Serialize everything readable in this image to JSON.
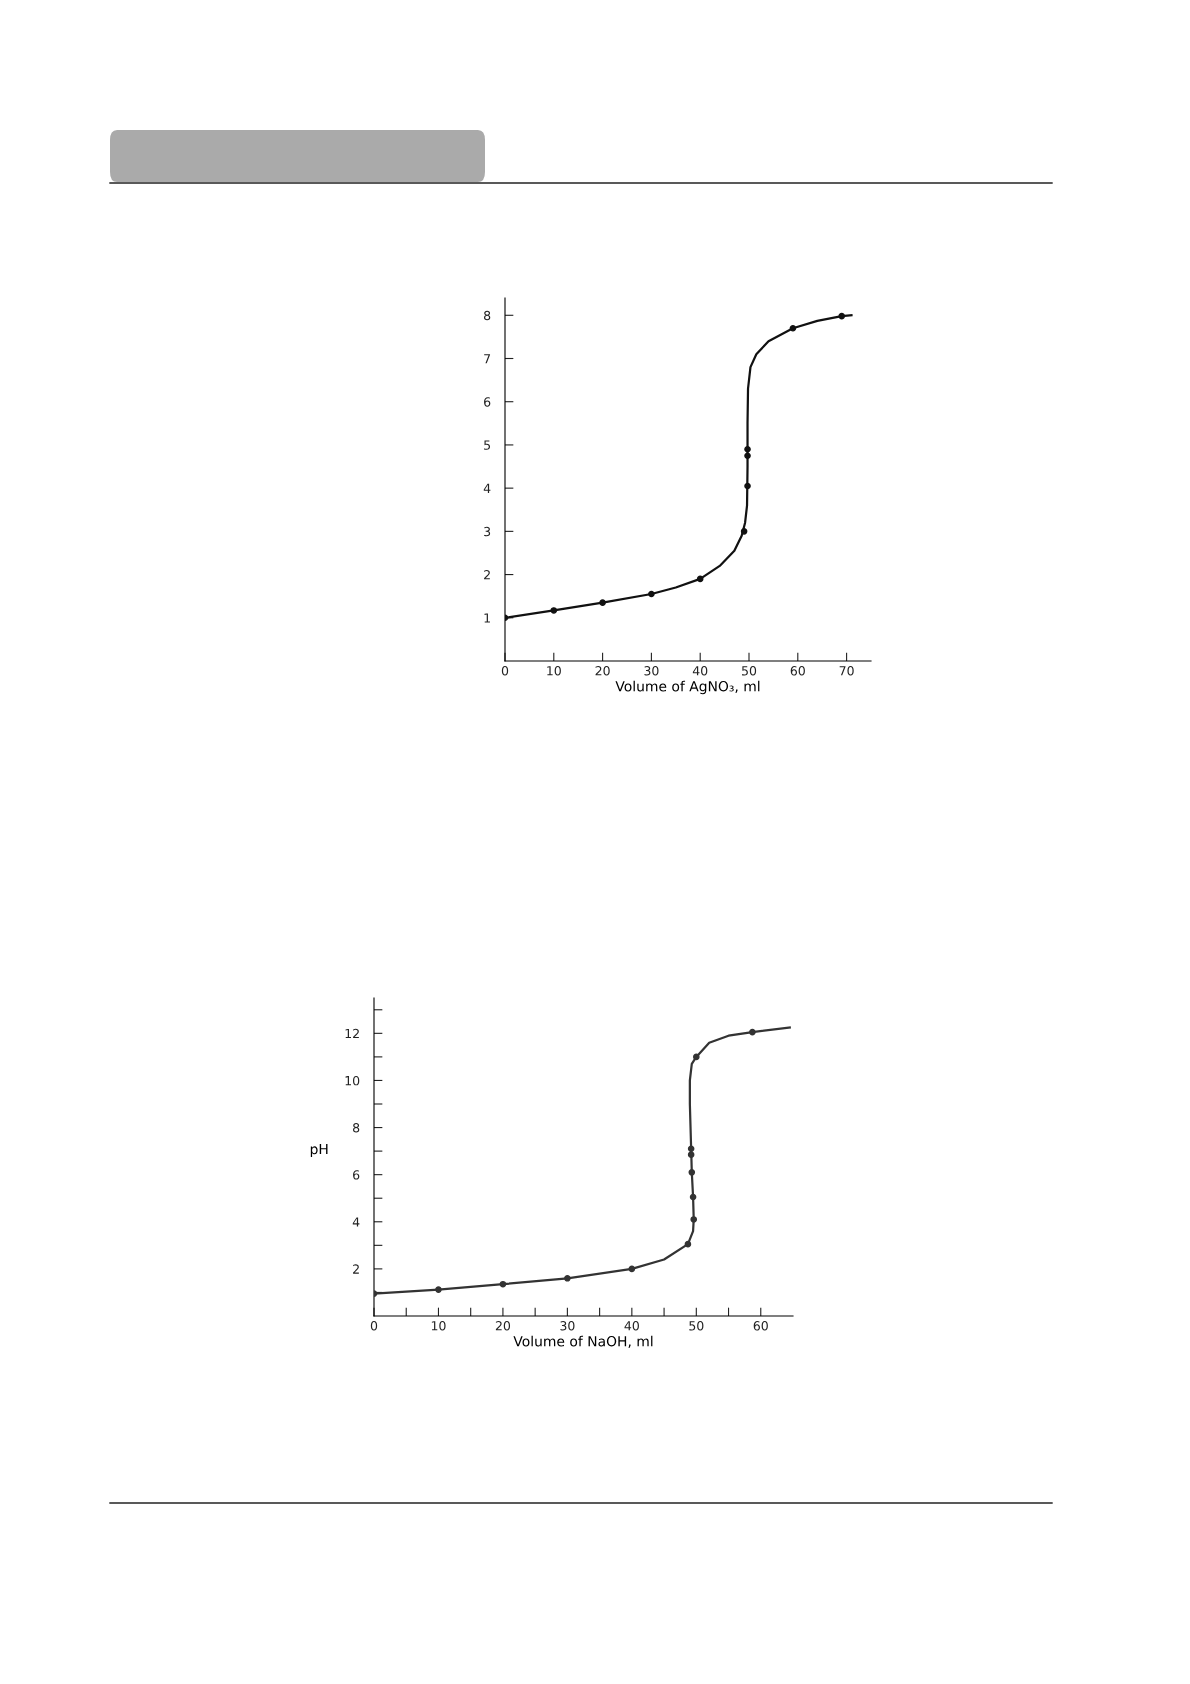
{
  "chart_data": [
    {
      "type": "line",
      "xlabel": "Volume of AgNO₃, ml",
      "xlim": [
        0,
        75
      ],
      "ylim": [
        0,
        8.4
      ],
      "xticks": [
        0,
        10,
        20,
        30,
        40,
        50,
        60,
        70
      ],
      "yticks": [
        1,
        2,
        3,
        4,
        5,
        6,
        7,
        8
      ],
      "grid": false,
      "legend": false,
      "series": [
        {
          "color": "#111111",
          "marker": "none",
          "x": [
            0,
            10,
            20,
            30,
            35,
            40,
            44,
            47,
            48.5,
            49.2,
            49.6,
            49.7,
            49.7,
            49.8,
            50.3,
            51.5,
            54,
            59,
            64,
            69,
            71
          ],
          "values": [
            1.0,
            1.17,
            1.35,
            1.55,
            1.7,
            1.9,
            2.2,
            2.55,
            2.9,
            3.2,
            3.6,
            4.5,
            5.5,
            6.3,
            6.8,
            7.1,
            7.4,
            7.7,
            7.87,
            7.98,
            8.0
          ]
        },
        {
          "type": "scatter",
          "color": "#111111",
          "marker": "circle",
          "x": [
            0,
            10,
            20,
            30,
            40,
            49,
            49.7,
            49.7,
            49.7,
            59,
            69
          ],
          "values": [
            1.0,
            1.17,
            1.35,
            1.55,
            1.9,
            3.0,
            4.05,
            4.75,
            4.9,
            7.7,
            7.98
          ]
        }
      ]
    },
    {
      "type": "line",
      "xlabel": "Volume of NaOH, ml",
      "ylabel": "pH",
      "xlim": [
        0,
        65
      ],
      "ylim": [
        0,
        13.5
      ],
      "xticks": [
        0,
        {
          "value": 5,
          "label": null
        },
        10,
        {
          "value": 15,
          "label": null
        },
        20,
        {
          "value": 25,
          "label": null
        },
        30,
        {
          "value": 35,
          "label": null
        },
        40,
        {
          "value": 45,
          "label": null
        },
        50,
        {
          "value": 55,
          "label": null
        },
        60
      ],
      "yticks": [
        {
          "value": 1,
          "label": null
        },
        2,
        {
          "value": 3,
          "label": null
        },
        4,
        {
          "value": 5,
          "label": null
        },
        6,
        {
          "value": 7,
          "label": null
        },
        8,
        {
          "value": 9,
          "label": null
        },
        10,
        {
          "value": 11,
          "label": null
        },
        12,
        {
          "value": 13,
          "label": null
        }
      ],
      "grid": false,
      "legend": false,
      "series": [
        {
          "color": "#333333",
          "marker": "none",
          "x": [
            0,
            10,
            20,
            30,
            40,
            45,
            48.7,
            49.5,
            49.6,
            49.5,
            49.3,
            49.2,
            49.0,
            49.0,
            49.3,
            50,
            52,
            55,
            58.7,
            64.5
          ],
          "values": [
            0.95,
            1.12,
            1.35,
            1.6,
            2.0,
            2.4,
            3.05,
            3.6,
            4.1,
            5.05,
            6.1,
            7.1,
            9,
            10.0,
            10.7,
            11.0,
            11.6,
            11.9,
            12.05,
            12.25
          ]
        },
        {
          "type": "scatter",
          "color": "#333333",
          "marker": "circle",
          "x": [
            0,
            10,
            20,
            30,
            40,
            48.7,
            49.6,
            49.5,
            49.3,
            49.2,
            49.2,
            50,
            58.7
          ],
          "values": [
            0.95,
            1.12,
            1.35,
            1.6,
            2.0,
            3.05,
            4.1,
            5.05,
            6.1,
            6.85,
            7.1,
            11.0,
            12.05
          ]
        }
      ]
    }
  ]
}
